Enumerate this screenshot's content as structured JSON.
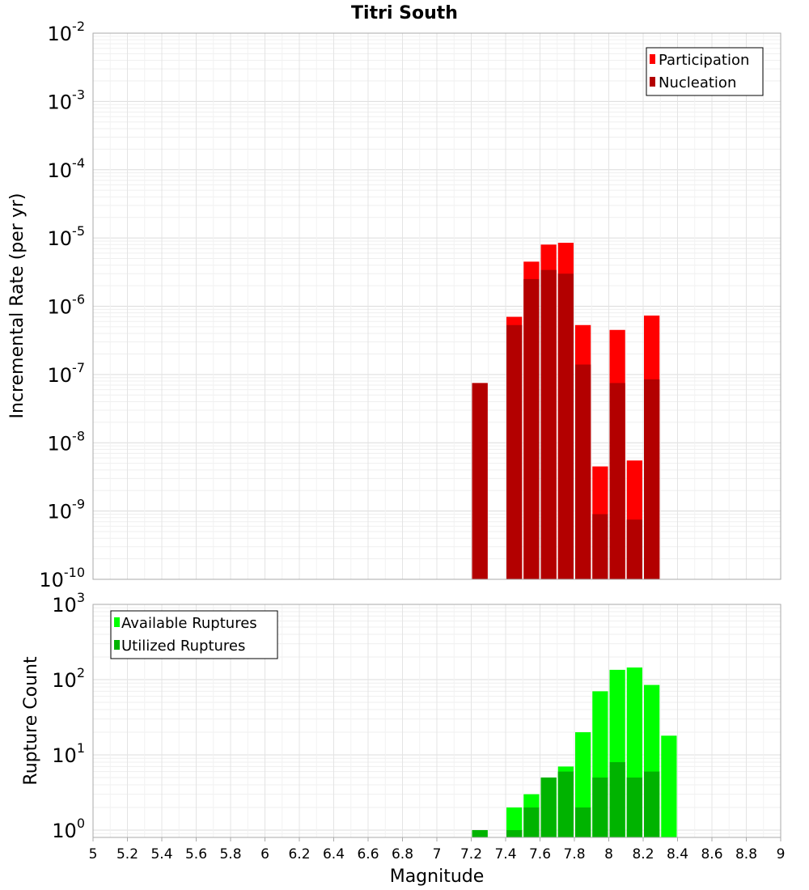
{
  "chart_data": [
    {
      "type": "bar",
      "title": "Titri South",
      "xlabel": "Magnitude",
      "ylabel": "Incremental Rate (per yr)",
      "xlim": [
        5,
        9
      ],
      "ylim": [
        1e-10,
        0.01
      ],
      "yscale": "log",
      "grid": true,
      "legend_position": "top-right",
      "x": [
        7.25,
        7.45,
        7.55,
        7.65,
        7.75,
        7.85,
        7.95,
        8.05,
        8.15,
        8.25
      ],
      "series": [
        {
          "name": "Participation",
          "color": "#ff0000",
          "values": [
            7.5e-08,
            7e-07,
            4.5e-06,
            8e-06,
            8.5e-06,
            5.3e-07,
            4.5e-09,
            4.5e-07,
            5.5e-09,
            7.3e-07
          ]
        },
        {
          "name": "Nucleation",
          "color": "#b30000",
          "values": [
            7.5e-08,
            5.3e-07,
            2.5e-06,
            3.4e-06,
            3e-06,
            1.4e-07,
            9e-10,
            7.5e-08,
            7.5e-10,
            8.5e-08
          ]
        }
      ]
    },
    {
      "type": "bar",
      "xlabel": "Magnitude",
      "ylabel": "Rupture Count",
      "xlim": [
        5,
        9
      ],
      "ylim": [
        0.8,
        1000
      ],
      "yscale": "log",
      "grid": true,
      "legend_position": "top-left",
      "x": [
        7.25,
        7.45,
        7.55,
        7.65,
        7.75,
        7.85,
        7.95,
        8.05,
        8.15,
        8.25,
        8.35
      ],
      "series": [
        {
          "name": "Available Ruptures",
          "color": "#00ff00",
          "values": [
            1,
            2,
            3,
            5,
            7,
            20,
            70,
            135,
            145,
            85,
            18
          ]
        },
        {
          "name": "Utilized Ruptures",
          "color": "#00b300",
          "values": [
            1,
            1,
            2,
            5,
            6,
            2,
            5,
            8,
            5,
            6,
            0
          ]
        }
      ]
    }
  ],
  "x_ticks": [
    "5",
    "5.2",
    "5.4",
    "5.6",
    "5.8",
    "6",
    "6.2",
    "6.4",
    "6.6",
    "6.8",
    "7",
    "7.2",
    "7.4",
    "7.6",
    "7.8",
    "8",
    "8.2",
    "8.4",
    "8.6",
    "8.8",
    "9"
  ],
  "top_y_ticks": [
    {
      "base": "10",
      "exp": "-10"
    },
    {
      "base": "10",
      "exp": "-9"
    },
    {
      "base": "10",
      "exp": "-8"
    },
    {
      "base": "10",
      "exp": "-7"
    },
    {
      "base": "10",
      "exp": "-6"
    },
    {
      "base": "10",
      "exp": "-5"
    },
    {
      "base": "10",
      "exp": "-4"
    },
    {
      "base": "10",
      "exp": "-3"
    },
    {
      "base": "10",
      "exp": "-2"
    }
  ],
  "bottom_y_ticks": [
    {
      "base": "10",
      "exp": "0"
    },
    {
      "base": "10",
      "exp": "1"
    },
    {
      "base": "10",
      "exp": "2"
    },
    {
      "base": "10",
      "exp": "3"
    }
  ]
}
